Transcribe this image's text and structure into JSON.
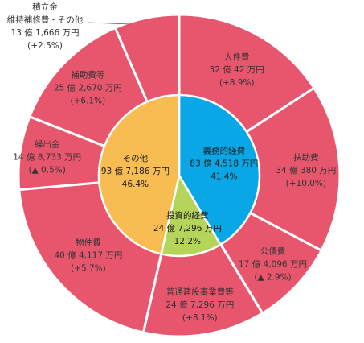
{
  "chart_data": {
    "type": "pie",
    "inner": {
      "slices": [
        {
          "name": "義務的経費",
          "amount": "83 億 4,518 万円",
          "percent": "41.4%",
          "value": 41.4,
          "color": "#0aa7e6"
        },
        {
          "name": "投資的経費",
          "amount": "24 億 7,296 万円",
          "percent": "12.2%",
          "value": 12.2,
          "color": "#b4d45a"
        },
        {
          "name": "その他",
          "amount": "93 億 7,186 万円",
          "percent": "46.4%",
          "value": 46.4,
          "color": "#f7bd52"
        }
      ]
    },
    "outer": {
      "color": "#e8566e",
      "slices": [
        {
          "name": "人件費",
          "amount": "32 億 42 万円",
          "change": "(+8.9%)",
          "value": 32.0042
        },
        {
          "name": "扶助費",
          "amount": "34 億 380 万円",
          "change": "(+10.0%)",
          "value": 34.038
        },
        {
          "name": "公債費",
          "amount": "17 億 4,096 万円",
          "change": "(▲ 2.9%)",
          "value": 17.4096
        },
        {
          "name": "普通建設事業費等",
          "amount": "24 億 7,296 万円",
          "change": "(+8.1%)",
          "value": 24.7296
        },
        {
          "name": "物件費",
          "amount": "40 億 4,117 万円",
          "change": "(+5.7%)",
          "value": 40.4117
        },
        {
          "name": "繰出金",
          "amount": "14 億 8,733 万円",
          "change": "(▲ 0.5%)",
          "value": 14.8733
        },
        {
          "name": "補助費等",
          "amount": "25 億 2,670 万円",
          "change": "(+6.1%)",
          "value": 25.267
        },
        {
          "name": "積立金\n維持補修費・その他",
          "amount": "13 億 1,666 万円",
          "change": "(+2.5%)",
          "value": 13.1666
        }
      ]
    }
  }
}
